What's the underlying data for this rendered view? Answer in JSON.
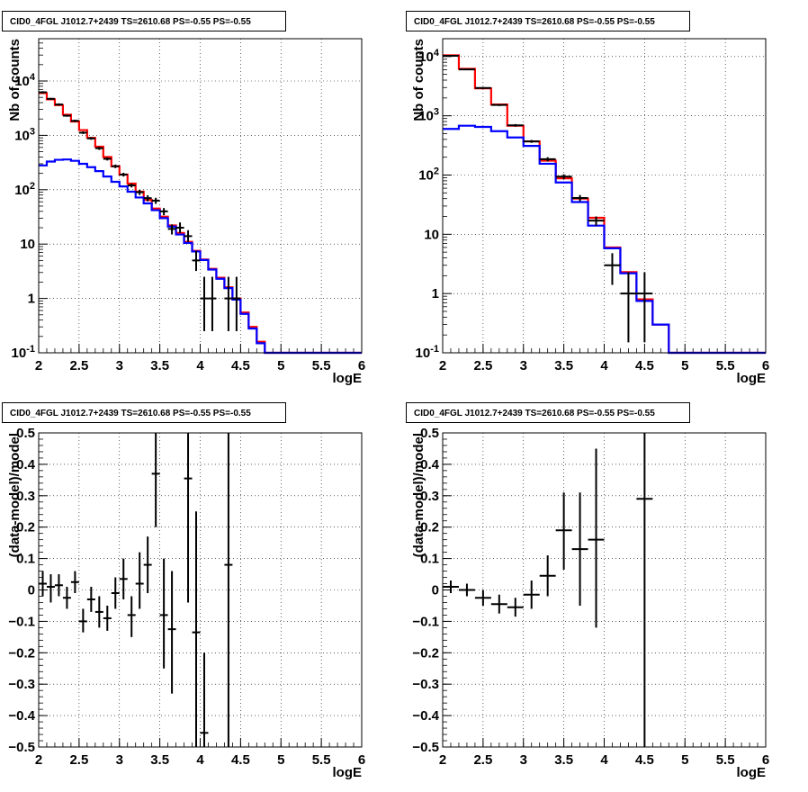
{
  "chart_data": [
    {
      "type": "line",
      "title": "CID0_4FGL J1012.7+2439 TS=2610.68 PS=-0.55 PS=-0.55",
      "xlabel": "logE",
      "ylabel": "Nb of counts",
      "xlim": [
        2,
        6
      ],
      "ylim": [
        0.1,
        60000
      ],
      "yscale": "log",
      "grid": true,
      "x_ticks": [
        "2",
        "2.5",
        "3",
        "3.5",
        "4",
        "4.5",
        "5",
        "5.5",
        "6"
      ],
      "y_ticks": [
        "10^-1",
        "1",
        "10",
        "10^2",
        "10^3",
        "10^4"
      ],
      "series": [
        {
          "color": "#ff0000",
          "kind": "histogram",
          "bin_edges": [
            2.0,
            2.1,
            2.2,
            2.3,
            2.4,
            2.5,
            2.6,
            2.7,
            2.8,
            2.9,
            3.0,
            3.1,
            3.2,
            3.3,
            3.4,
            3.5,
            3.6,
            3.7,
            3.8,
            3.9,
            4.0,
            4.1,
            4.2,
            4.3,
            4.4,
            4.5,
            4.6,
            4.7,
            4.8,
            4.9,
            5.0,
            5.1,
            5.2,
            5.3,
            5.4,
            5.5,
            5.6,
            5.7,
            5.8,
            5.9,
            6.0
          ],
          "values": [
            6000,
            4600,
            3600,
            2400,
            1800,
            1250,
            900,
            620,
            400,
            270,
            190,
            130,
            92,
            65,
            45,
            32,
            22,
            16,
            11,
            7.5,
            5.2,
            3.5,
            2.4,
            1.6,
            1.0,
            0.55,
            0.3,
            0.16,
            0.1,
            0.1,
            0.1,
            0.1,
            0.1,
            0.1,
            0.1,
            0.1,
            0.1,
            0.1,
            0.1,
            0.1
          ]
        },
        {
          "color": "#0000ff",
          "kind": "histogram",
          "bin_edges": [
            2.0,
            2.1,
            2.2,
            2.3,
            2.4,
            2.5,
            2.6,
            2.7,
            2.8,
            2.9,
            3.0,
            3.1,
            3.2,
            3.3,
            3.4,
            3.5,
            3.6,
            3.7,
            3.8,
            3.9,
            4.0,
            4.1,
            4.2,
            4.3,
            4.4,
            4.5,
            4.6,
            4.7,
            4.8,
            4.9,
            5.0,
            5.1,
            5.2,
            5.3,
            5.4,
            5.5,
            5.6,
            5.7,
            5.8,
            5.9,
            6.0
          ],
          "values": [
            280,
            330,
            355,
            360,
            340,
            300,
            260,
            220,
            175,
            140,
            115,
            92,
            72,
            56,
            42,
            30,
            21,
            15,
            10.5,
            7.3,
            5.1,
            3.4,
            2.3,
            1.55,
            0.95,
            0.52,
            0.28,
            0.15,
            0.1,
            0.1,
            0.1,
            0.1,
            0.1,
            0.1,
            0.1,
            0.1,
            0.1,
            0.1,
            0.1,
            0.1
          ]
        },
        {
          "color": "#000000",
          "kind": "points",
          "x": [
            2.05,
            2.15,
            2.25,
            2.35,
            2.45,
            2.55,
            2.65,
            2.75,
            2.85,
            2.95,
            3.05,
            3.15,
            3.25,
            3.35,
            3.45,
            3.55,
            3.65,
            3.75,
            3.85,
            3.95,
            4.05,
            4.15,
            4.35,
            4.45
          ],
          "y": [
            6200,
            4700,
            3700,
            2300,
            1850,
            1120,
            880,
            580,
            370,
            270,
            190,
            120,
            90,
            70,
            63,
            40,
            19,
            20,
            14,
            5,
            1.0,
            1.0,
            1.0,
            1.0
          ],
          "ylo": [
            5900,
            4500,
            3520,
            2200,
            1760,
            1060,
            830,
            540,
            345,
            250,
            175,
            110,
            80,
            61,
            55,
            34,
            15,
            16,
            11,
            3.2,
            0.25,
            0.25,
            0.25,
            0.25
          ],
          "yhi": [
            6500,
            4900,
            3880,
            2400,
            1940,
            1180,
            930,
            620,
            395,
            290,
            205,
            130,
            100,
            79,
            71,
            46,
            23,
            25,
            18,
            7.5,
            2.5,
            2.5,
            2.5,
            2.5
          ]
        }
      ]
    },
    {
      "type": "line",
      "title": "CID0_4FGL J1012.7+2439 TS=2610.68 PS=-0.55 PS=-0.55",
      "xlabel": "logE",
      "ylabel": "Nb of counts",
      "xlim": [
        2,
        6
      ],
      "ylim": [
        0.1,
        20000
      ],
      "yscale": "log",
      "grid": true,
      "x_ticks": [
        "2",
        "2.5",
        "3",
        "3.5",
        "4",
        "4.5",
        "5",
        "5.5",
        "6"
      ],
      "y_ticks": [
        "10^-1",
        "1",
        "10",
        "10^2",
        "10^3",
        "10^4"
      ],
      "series": [
        {
          "color": "#ff0000",
          "kind": "histogram",
          "bin_edges": [
            2.0,
            2.2,
            2.4,
            2.6,
            2.8,
            3.0,
            3.2,
            3.4,
            3.6,
            3.8,
            4.0,
            4.2,
            4.4,
            4.6,
            4.8,
            5.0,
            5.2,
            5.4,
            5.6,
            5.8,
            6.0
          ],
          "values": [
            10500,
            6200,
            2900,
            1550,
            680,
            370,
            175,
            88,
            40,
            19,
            6.0,
            2.3,
            0.8,
            0.3,
            0.1,
            0.1,
            0.1,
            0.1,
            0.1,
            0.1
          ]
        },
        {
          "color": "#0000ff",
          "kind": "histogram",
          "bin_edges": [
            2.0,
            2.2,
            2.4,
            2.6,
            2.8,
            3.0,
            3.2,
            3.4,
            3.6,
            3.8,
            4.0,
            4.2,
            4.4,
            4.6,
            4.8,
            5.0,
            5.2,
            5.4,
            5.6,
            5.8,
            6.0
          ],
          "values": [
            600,
            680,
            650,
            550,
            430,
            310,
            155,
            75,
            35,
            14,
            5.8,
            2.2,
            0.75,
            0.3,
            0.1,
            0.1,
            0.1,
            0.1,
            0.1,
            0.1
          ]
        },
        {
          "color": "#000000",
          "kind": "points",
          "x": [
            2.1,
            2.3,
            2.5,
            2.7,
            2.9,
            3.1,
            3.3,
            3.5,
            3.7,
            3.9,
            4.1,
            4.3,
            4.5
          ],
          "y": [
            10300,
            6050,
            2950,
            1520,
            690,
            370,
            185,
            94,
            41,
            17,
            3.0,
            1.0,
            1.0
          ],
          "ylo": [
            10100,
            5900,
            2850,
            1460,
            655,
            350,
            170,
            85,
            36,
            14,
            1.4,
            0.15,
            0.15
          ],
          "yhi": [
            10500,
            6200,
            3050,
            1580,
            725,
            390,
            200,
            103,
            46,
            20,
            4.8,
            2.3,
            2.3
          ]
        }
      ]
    },
    {
      "type": "scatter",
      "title": "CID0_4FGL J1012.7+2439 TS=2610.68 PS=-0.55 PS=-0.55",
      "xlabel": "logE",
      "ylabel": "(data-model)/model",
      "xlim": [
        2,
        6
      ],
      "ylim": [
        -0.5,
        0.5
      ],
      "grid": true,
      "x_ticks": [
        "2",
        "2.5",
        "3",
        "3.5",
        "4",
        "4.5",
        "5",
        "5.5",
        "6"
      ],
      "y_ticks": [
        "−0.5",
        "−0.4",
        "−0.3",
        "−0.2",
        "−0.1",
        "0",
        "0.1",
        "0.2",
        "0.3",
        "0.4",
        "0.5"
      ],
      "series": [
        {
          "color": "#000000",
          "kind": "points",
          "x": [
            2.05,
            2.15,
            2.25,
            2.35,
            2.45,
            2.55,
            2.65,
            2.75,
            2.85,
            2.95,
            3.05,
            3.15,
            3.25,
            3.35,
            3.45,
            3.55,
            3.65,
            3.85,
            3.95,
            4.05,
            4.35
          ],
          "y": [
            0.02,
            0.01,
            0.015,
            -0.025,
            0.025,
            -0.1,
            -0.03,
            -0.07,
            -0.09,
            -0.01,
            0.035,
            -0.08,
            0.02,
            0.08,
            0.37,
            -0.08,
            -0.125,
            0.355,
            -0.135,
            -0.455,
            0.08
          ],
          "ylo": [
            -0.02,
            -0.04,
            -0.02,
            -0.06,
            -0.01,
            -0.135,
            -0.07,
            -0.12,
            -0.13,
            -0.06,
            -0.03,
            -0.15,
            -0.06,
            -0.01,
            0.2,
            -0.25,
            -0.33,
            -0.04,
            -0.5,
            -0.5,
            -0.5
          ],
          "yhi": [
            0.06,
            0.05,
            0.05,
            0.01,
            0.06,
            -0.06,
            0.01,
            -0.02,
            -0.05,
            0.04,
            0.1,
            -0.02,
            0.12,
            0.17,
            0.5,
            0.1,
            0.06,
            0.5,
            0.25,
            -0.2,
            0.5
          ]
        }
      ]
    },
    {
      "type": "scatter",
      "title": "CID0_4FGL J1012.7+2439 TS=2610.68 PS=-0.55 PS=-0.55",
      "xlabel": "logE",
      "ylabel": "(data-model)/model",
      "xlim": [
        2,
        6
      ],
      "ylim": [
        -0.5,
        0.5
      ],
      "grid": true,
      "x_ticks": [
        "2",
        "2.5",
        "3",
        "3.5",
        "4",
        "4.5",
        "5",
        "5.5",
        "6"
      ],
      "y_ticks": [
        "−0.5",
        "−0.4",
        "−0.3",
        "−0.2",
        "−0.1",
        "0",
        "0.1",
        "0.2",
        "0.3",
        "0.4",
        "0.5"
      ],
      "series": [
        {
          "color": "#000000",
          "kind": "points",
          "x": [
            2.1,
            2.3,
            2.5,
            2.7,
            2.9,
            3.1,
            3.3,
            3.5,
            3.7,
            3.9,
            4.5
          ],
          "y": [
            0.01,
            0.0,
            -0.025,
            -0.045,
            -0.055,
            -0.015,
            0.045,
            0.19,
            0.13,
            0.16,
            0.29
          ],
          "ylo": [
            -0.01,
            -0.02,
            -0.05,
            -0.075,
            -0.085,
            -0.06,
            -0.02,
            0.065,
            -0.05,
            -0.12,
            -0.5
          ],
          "yhi": [
            0.03,
            0.02,
            0.0,
            -0.015,
            -0.025,
            0.03,
            0.11,
            0.31,
            0.31,
            0.45,
            0.5
          ]
        }
      ]
    }
  ]
}
